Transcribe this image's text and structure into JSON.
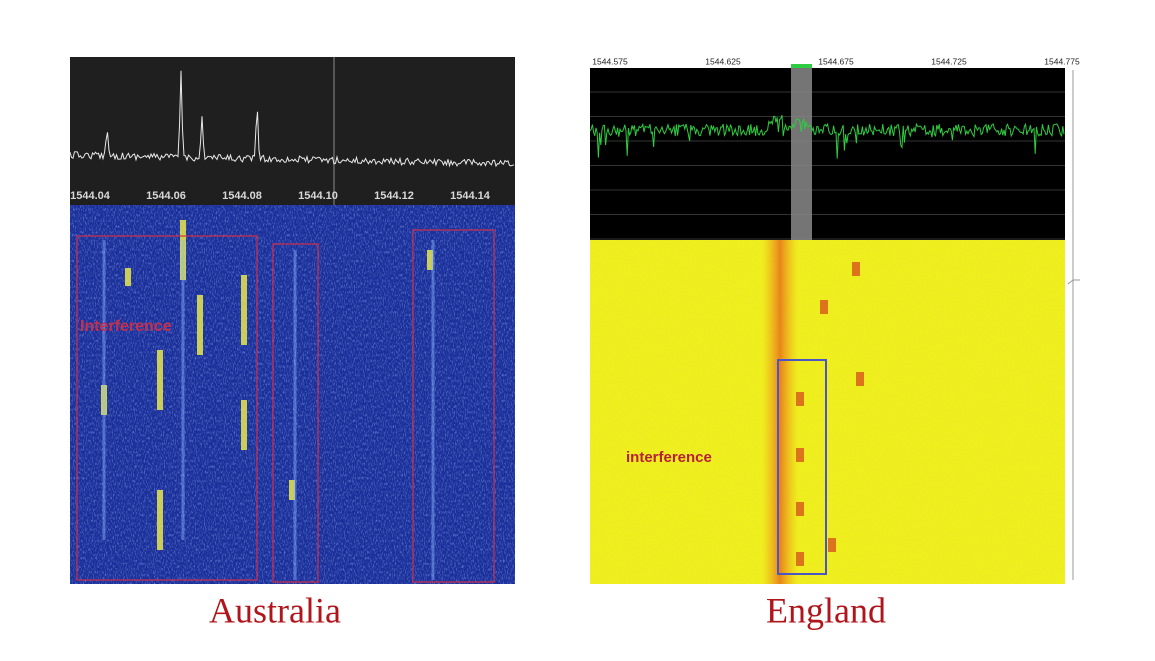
{
  "panels": [
    {
      "axis_labels": [
        "1544.04",
        "1544.06",
        "1544.08",
        "1544.10",
        "1544.12",
        "1544.14"
      ],
      "annotation": "Interference",
      "caption": "Australia"
    },
    {
      "axis_labels": [
        "1544.575",
        "1544.625",
        "1544.675",
        "1544.725",
        "1544.775"
      ],
      "annotation": "interference",
      "caption": "England"
    }
  ]
}
